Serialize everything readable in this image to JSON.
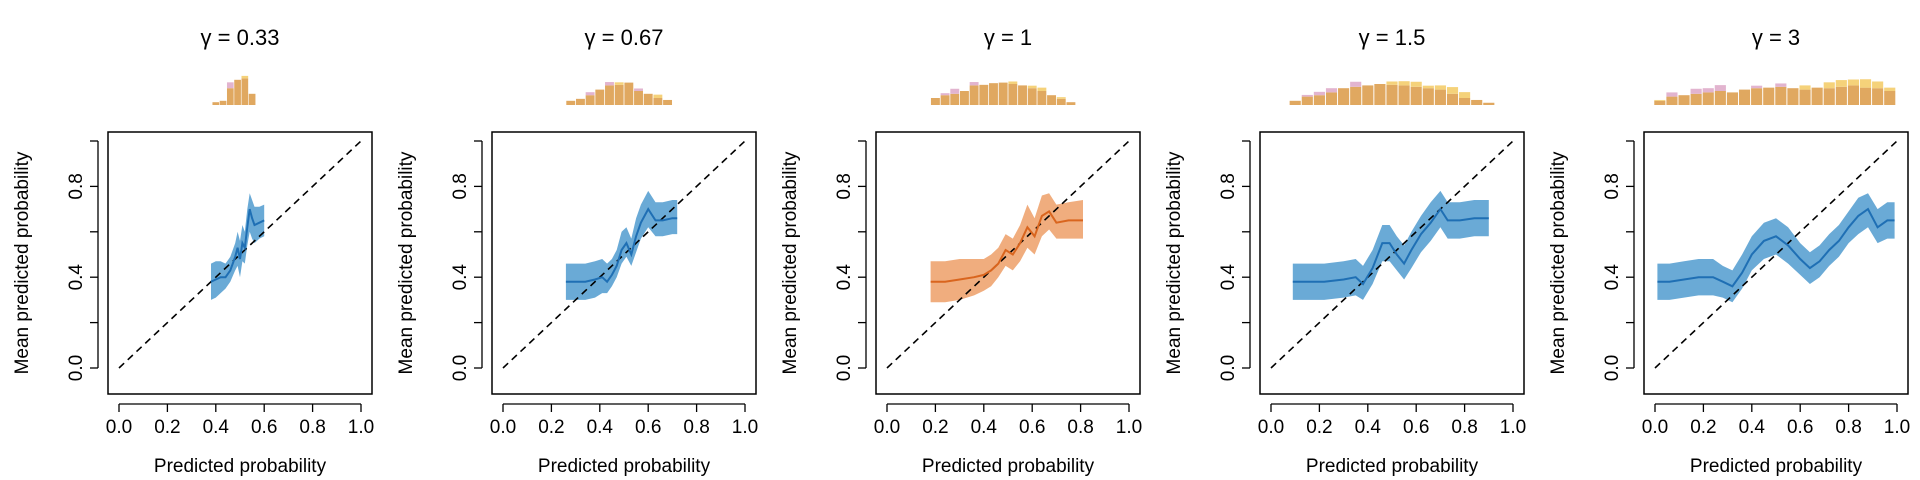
{
  "colors": {
    "blue_line": "#1f6fb4",
    "blue_band": "#6aaad6",
    "orange_line": "#d9651e",
    "orange_band": "#f0ad7e",
    "hist_main": "#e0a860",
    "hist_top_yellow": "#f5d27a",
    "hist_top_pink": "#e2b4cf"
  },
  "chart_data": [
    {
      "type": "line",
      "title": "γ = 0.33",
      "xlabel": "Predicted probability",
      "ylabel": "Mean predicted probability",
      "xlim": [
        0,
        1
      ],
      "ylim": [
        0,
        1
      ],
      "xticks": [
        "0.0",
        "0.2",
        "0.4",
        "0.6",
        "0.8",
        "1.0"
      ],
      "yticks": [
        "0.0",
        "0.4",
        "0.8"
      ],
      "color_key": "blue",
      "reference_line": "y = x dashed",
      "series": [
        {
          "x": [
            0.38,
            0.4,
            0.42,
            0.44,
            0.46,
            0.48,
            0.49,
            0.5,
            0.51,
            0.52,
            0.53,
            0.54,
            0.55,
            0.56,
            0.58,
            0.6
          ],
          "y": [
            0.38,
            0.39,
            0.4,
            0.4,
            0.43,
            0.49,
            0.53,
            0.48,
            0.55,
            0.53,
            0.62,
            0.7,
            0.66,
            0.63,
            0.64,
            0.65
          ],
          "lower": [
            0.3,
            0.31,
            0.33,
            0.35,
            0.38,
            0.43,
            0.45,
            0.4,
            0.47,
            0.46,
            0.54,
            0.6,
            0.57,
            0.55,
            0.57,
            0.58
          ],
          "upper": [
            0.46,
            0.47,
            0.47,
            0.46,
            0.49,
            0.55,
            0.6,
            0.56,
            0.63,
            0.6,
            0.7,
            0.77,
            0.74,
            0.71,
            0.71,
            0.72
          ]
        }
      ],
      "histogram": {
        "bins": [
          0.4,
          0.43,
          0.46,
          0.49,
          0.52,
          0.55,
          0.58
        ],
        "main": [
          0.1,
          0.15,
          0.6,
          0.9,
          0.95,
          0.4,
          0.0
        ],
        "top": [
          0.0,
          0.0,
          0.35,
          0.0,
          0.15,
          0.0,
          0.0
        ],
        "top_color": [
          "y",
          "y",
          "p",
          "y",
          "y",
          "y",
          "y"
        ]
      }
    },
    {
      "type": "line",
      "title": "γ = 0.67",
      "xlabel": "Predicted probability",
      "ylabel": "Mean predicted probability",
      "xlim": [
        0,
        1
      ],
      "ylim": [
        0,
        1
      ],
      "xticks": [
        "0.0",
        "0.2",
        "0.4",
        "0.6",
        "0.8",
        "1.0"
      ],
      "yticks": [
        "0.0",
        "0.4",
        "0.8"
      ],
      "color_key": "blue",
      "reference_line": "y = x dashed",
      "series": [
        {
          "x": [
            0.26,
            0.3,
            0.34,
            0.38,
            0.41,
            0.43,
            0.45,
            0.47,
            0.49,
            0.51,
            0.53,
            0.55,
            0.57,
            0.6,
            0.63,
            0.66,
            0.7,
            0.72
          ],
          "y": [
            0.38,
            0.38,
            0.38,
            0.39,
            0.4,
            0.38,
            0.41,
            0.45,
            0.52,
            0.55,
            0.5,
            0.58,
            0.64,
            0.7,
            0.65,
            0.65,
            0.66,
            0.66
          ],
          "lower": [
            0.3,
            0.3,
            0.3,
            0.31,
            0.33,
            0.33,
            0.36,
            0.4,
            0.46,
            0.49,
            0.45,
            0.51,
            0.57,
            0.62,
            0.58,
            0.58,
            0.59,
            0.59
          ],
          "upper": [
            0.46,
            0.46,
            0.46,
            0.47,
            0.48,
            0.46,
            0.48,
            0.52,
            0.6,
            0.62,
            0.57,
            0.66,
            0.72,
            0.78,
            0.73,
            0.73,
            0.74,
            0.74
          ]
        }
      ],
      "histogram": {
        "bins": [
          0.28,
          0.32,
          0.36,
          0.4,
          0.44,
          0.48,
          0.52,
          0.56,
          0.6,
          0.64,
          0.68
        ],
        "main": [
          0.15,
          0.22,
          0.35,
          0.55,
          0.7,
          0.72,
          0.8,
          0.5,
          0.4,
          0.25,
          0.18
        ],
        "top": [
          0.0,
          0.0,
          0.18,
          0.0,
          0.2,
          0.15,
          0.0,
          0.15,
          0.0,
          0.2,
          0.0
        ],
        "top_color": [
          "y",
          "y",
          "p",
          "y",
          "p",
          "y",
          "y",
          "p",
          "y",
          "y",
          "y"
        ]
      }
    },
    {
      "type": "line",
      "title": "γ = 1",
      "xlabel": "Predicted probability",
      "ylabel": "Mean predicted probability",
      "xlim": [
        0,
        1
      ],
      "ylim": [
        0,
        1
      ],
      "xticks": [
        "0.0",
        "0.2",
        "0.4",
        "0.6",
        "0.8",
        "1.0"
      ],
      "yticks": [
        "0.0",
        "0.4",
        "0.8"
      ],
      "color_key": "orange",
      "reference_line": "y = x dashed",
      "series": [
        {
          "x": [
            0.18,
            0.24,
            0.3,
            0.36,
            0.4,
            0.43,
            0.46,
            0.49,
            0.52,
            0.55,
            0.58,
            0.61,
            0.64,
            0.67,
            0.7,
            0.75,
            0.81
          ],
          "y": [
            0.38,
            0.38,
            0.39,
            0.4,
            0.41,
            0.43,
            0.46,
            0.52,
            0.5,
            0.55,
            0.62,
            0.58,
            0.67,
            0.69,
            0.64,
            0.65,
            0.65
          ],
          "lower": [
            0.29,
            0.29,
            0.3,
            0.32,
            0.34,
            0.36,
            0.4,
            0.45,
            0.43,
            0.47,
            0.53,
            0.5,
            0.58,
            0.61,
            0.57,
            0.57,
            0.57
          ],
          "upper": [
            0.47,
            0.47,
            0.48,
            0.48,
            0.48,
            0.5,
            0.53,
            0.59,
            0.57,
            0.63,
            0.72,
            0.66,
            0.76,
            0.77,
            0.72,
            0.73,
            0.74
          ]
        }
      ],
      "histogram": {
        "bins": [
          0.2,
          0.24,
          0.28,
          0.32,
          0.36,
          0.4,
          0.44,
          0.48,
          0.52,
          0.56,
          0.6,
          0.64,
          0.68,
          0.72,
          0.76
        ],
        "main": [
          0.25,
          0.35,
          0.4,
          0.5,
          0.7,
          0.72,
          0.78,
          0.8,
          0.75,
          0.7,
          0.6,
          0.5,
          0.35,
          0.22,
          0.1
        ],
        "top": [
          0.0,
          0.12,
          0.3,
          0.0,
          0.2,
          0.0,
          0.0,
          0.0,
          0.15,
          0.0,
          0.15,
          0.2,
          0.0,
          0.1,
          0.0
        ],
        "top_color": [
          "y",
          "p",
          "p",
          "y",
          "p",
          "y",
          "y",
          "y",
          "y",
          "y",
          "y",
          "y",
          "y",
          "y",
          "y"
        ]
      }
    },
    {
      "type": "line",
      "title": "γ = 1.5",
      "xlabel": "Predicted probability",
      "ylabel": "Mean predicted probability",
      "xlim": [
        0,
        1
      ],
      "ylim": [
        0,
        1
      ],
      "xticks": [
        "0.0",
        "0.2",
        "0.4",
        "0.6",
        "0.8",
        "1.0"
      ],
      "yticks": [
        "0.0",
        "0.4",
        "0.8"
      ],
      "color_key": "blue",
      "reference_line": "y = x dashed",
      "series": [
        {
          "x": [
            0.09,
            0.15,
            0.22,
            0.3,
            0.35,
            0.38,
            0.42,
            0.46,
            0.49,
            0.52,
            0.55,
            0.58,
            0.62,
            0.66,
            0.7,
            0.73,
            0.78,
            0.84,
            0.9
          ],
          "y": [
            0.38,
            0.38,
            0.38,
            0.39,
            0.4,
            0.37,
            0.44,
            0.55,
            0.55,
            0.5,
            0.46,
            0.52,
            0.59,
            0.64,
            0.7,
            0.65,
            0.65,
            0.66,
            0.66
          ],
          "lower": [
            0.3,
            0.3,
            0.3,
            0.31,
            0.32,
            0.3,
            0.37,
            0.47,
            0.47,
            0.43,
            0.39,
            0.44,
            0.51,
            0.56,
            0.62,
            0.57,
            0.57,
            0.58,
            0.58
          ],
          "upper": [
            0.46,
            0.46,
            0.46,
            0.47,
            0.48,
            0.45,
            0.52,
            0.63,
            0.63,
            0.58,
            0.54,
            0.6,
            0.67,
            0.73,
            0.78,
            0.73,
            0.73,
            0.74,
            0.74
          ]
        }
      ],
      "histogram": {
        "bins": [
          0.1,
          0.15,
          0.2,
          0.25,
          0.3,
          0.35,
          0.4,
          0.45,
          0.5,
          0.55,
          0.6,
          0.65,
          0.7,
          0.75,
          0.8,
          0.85,
          0.9
        ],
        "main": [
          0.15,
          0.3,
          0.35,
          0.45,
          0.6,
          0.65,
          0.7,
          0.75,
          0.72,
          0.7,
          0.65,
          0.6,
          0.55,
          0.4,
          0.25,
          0.18,
          0.08
        ],
        "top": [
          0.0,
          0.1,
          0.2,
          0.25,
          0.0,
          0.3,
          0.0,
          0.0,
          0.2,
          0.25,
          0.3,
          0.15,
          0.25,
          0.4,
          0.35,
          0.0,
          0.0
        ],
        "top_color": [
          "y",
          "p",
          "p",
          "p",
          "y",
          "p",
          "y",
          "y",
          "y",
          "y",
          "y",
          "y",
          "y",
          "y",
          "y",
          "y",
          "y"
        ]
      }
    },
    {
      "type": "line",
      "title": "γ = 3",
      "xlabel": "Predicted probability",
      "ylabel": "Mean predicted probability",
      "xlim": [
        0,
        1
      ],
      "ylim": [
        0,
        1
      ],
      "xticks": [
        "0.0",
        "0.2",
        "0.4",
        "0.6",
        "0.8",
        "1.0"
      ],
      "yticks": [
        "0.0",
        "0.4",
        "0.8"
      ],
      "color_key": "blue",
      "reference_line": "y = x dashed",
      "series": [
        {
          "x": [
            0.01,
            0.06,
            0.12,
            0.18,
            0.24,
            0.28,
            0.32,
            0.36,
            0.4,
            0.45,
            0.5,
            0.55,
            0.6,
            0.64,
            0.68,
            0.72,
            0.76,
            0.8,
            0.84,
            0.88,
            0.92,
            0.96,
            0.99
          ],
          "y": [
            0.38,
            0.38,
            0.39,
            0.4,
            0.4,
            0.38,
            0.36,
            0.42,
            0.5,
            0.56,
            0.58,
            0.54,
            0.48,
            0.44,
            0.47,
            0.52,
            0.56,
            0.62,
            0.67,
            0.7,
            0.62,
            0.65,
            0.65
          ],
          "lower": [
            0.3,
            0.3,
            0.31,
            0.32,
            0.32,
            0.31,
            0.29,
            0.35,
            0.43,
            0.48,
            0.5,
            0.46,
            0.41,
            0.37,
            0.4,
            0.45,
            0.49,
            0.55,
            0.59,
            0.62,
            0.55,
            0.57,
            0.57
          ],
          "upper": [
            0.46,
            0.46,
            0.47,
            0.48,
            0.48,
            0.45,
            0.43,
            0.5,
            0.58,
            0.64,
            0.66,
            0.62,
            0.55,
            0.51,
            0.54,
            0.59,
            0.63,
            0.69,
            0.75,
            0.77,
            0.7,
            0.73,
            0.73
          ]
        }
      ],
      "histogram": {
        "bins": [
          0.02,
          0.07,
          0.12,
          0.17,
          0.22,
          0.27,
          0.32,
          0.37,
          0.42,
          0.47,
          0.52,
          0.57,
          0.62,
          0.67,
          0.72,
          0.77,
          0.82,
          0.87,
          0.92,
          0.97
        ],
        "main": [
          0.15,
          0.3,
          0.35,
          0.4,
          0.45,
          0.5,
          0.45,
          0.55,
          0.6,
          0.62,
          0.65,
          0.6,
          0.55,
          0.62,
          0.6,
          0.65,
          0.7,
          0.62,
          0.6,
          0.5
        ],
        "top": [
          0.05,
          0.25,
          0.0,
          0.3,
          0.25,
          0.35,
          0.0,
          0.0,
          0.15,
          0.0,
          0.2,
          0.0,
          0.25,
          0.0,
          0.35,
          0.4,
          0.35,
          0.5,
          0.4,
          0.2
        ],
        "top_color": [
          "y",
          "p",
          "y",
          "p",
          "p",
          "p",
          "y",
          "y",
          "p",
          "y",
          "p",
          "y",
          "y",
          "y",
          "y",
          "y",
          "y",
          "y",
          "y",
          "y"
        ]
      }
    }
  ]
}
